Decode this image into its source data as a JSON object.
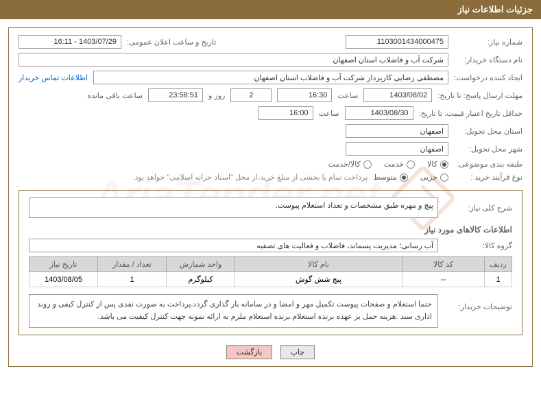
{
  "header": {
    "title": "جزئیات اطلاعات نیاز"
  },
  "watermark": "AriaTender.net",
  "fields": {
    "need_number_label": "شماره نیاز:",
    "need_number": "1103001434000475",
    "announce_date_label": "تاریخ و ساعت اعلان عمومی:",
    "announce_date": "1403/07/29 - 16:11",
    "buyer_org_label": "نام دستگاه خریدار:",
    "buyer_org": "شرکت آب و فاضلاب استان اصفهان",
    "requester_label": "ایجاد کننده درخواست:",
    "requester": "مصطفی رضایی کارپرداز شرکت آب و فاضلاب استان اصفهان",
    "contact_link": "اطلاعات تماس خریدار",
    "response_deadline_label": "مهلت ارسال پاسخ: تا تاریخ:",
    "response_date": "1403/08/02",
    "time_label": "ساعت",
    "response_time": "16:30",
    "days_remaining": "2",
    "days_word": "روز و",
    "hours_remaining": "23:58:51",
    "remaining_suffix": "ساعت باقی مانده",
    "min_validity_label": "حداقل تاریخ اعتبار قیمت: تا تاریخ:",
    "min_validity_date": "1403/08/30",
    "min_validity_time": "16:00",
    "delivery_province_label": "استان محل تحویل:",
    "delivery_province": "اصفهان",
    "delivery_city_label": "شهر محل تحویل:",
    "delivery_city": "اصفهان",
    "category_label": "طبقه بندی موضوعی:",
    "purchase_type_label": "نوع فرآیند خرید :",
    "purchase_note": "پرداخت تمام یا بخشی از مبلغ خرید،از محل \"اسناد خزانه اسلامی\" خواهد بود."
  },
  "radios": {
    "category": [
      {
        "label": "کالا",
        "checked": true
      },
      {
        "label": "خدمت",
        "checked": false
      },
      {
        "label": "کالا/خدمت",
        "checked": false
      }
    ],
    "purchase": [
      {
        "label": "جزیی",
        "checked": false
      },
      {
        "label": "متوسط",
        "checked": true
      }
    ]
  },
  "detail": {
    "general_desc_label": "شرح کلی نیاز:",
    "general_desc": "پیچ و مهره طبق مشخصات و تعداد استعلام پیوست.",
    "goods_info_title": "اطلاعات کالاهای مورد نیاز",
    "goods_group_label": "گروه کالا:",
    "goods_group": "آب رسانی؛ مدیریت پسماند، فاضلاب و فعالیت های تصفیه"
  },
  "table": {
    "columns": [
      "ردیف",
      "کد کالا",
      "نام کالا",
      "واحد شمارش",
      "تعداد / مقدار",
      "تاریخ نیاز"
    ],
    "widths": [
      "40px",
      "120px",
      "auto",
      "100px",
      "100px",
      "100px"
    ],
    "rows": [
      [
        "1",
        "--",
        "پیچ شش گوش",
        "کیلوگرم",
        "1",
        "1403/08/05"
      ]
    ]
  },
  "buyer_note": {
    "label": "توضیحات خریدار:",
    "text": "حتما استعلام و صفحات پیوست تکمیل مهر و امضا و در سامانه بار گذاری گردد.پرداخت به صورت نقدی پس از کنترل کیفی و روند اداری سند .هزینه حمل بر عهده برنده استعلام.برنده استعلام ملزم به ارائه نمونه جهت کنترل کیفیت می باشد."
  },
  "buttons": {
    "print": "چاپ",
    "back": "بازگشت"
  },
  "colors": {
    "header_bg": "#8a6d3b",
    "border": "#8a6d3b",
    "link": "#0066cc",
    "btn_back_bg": "#f4c7c3"
  }
}
